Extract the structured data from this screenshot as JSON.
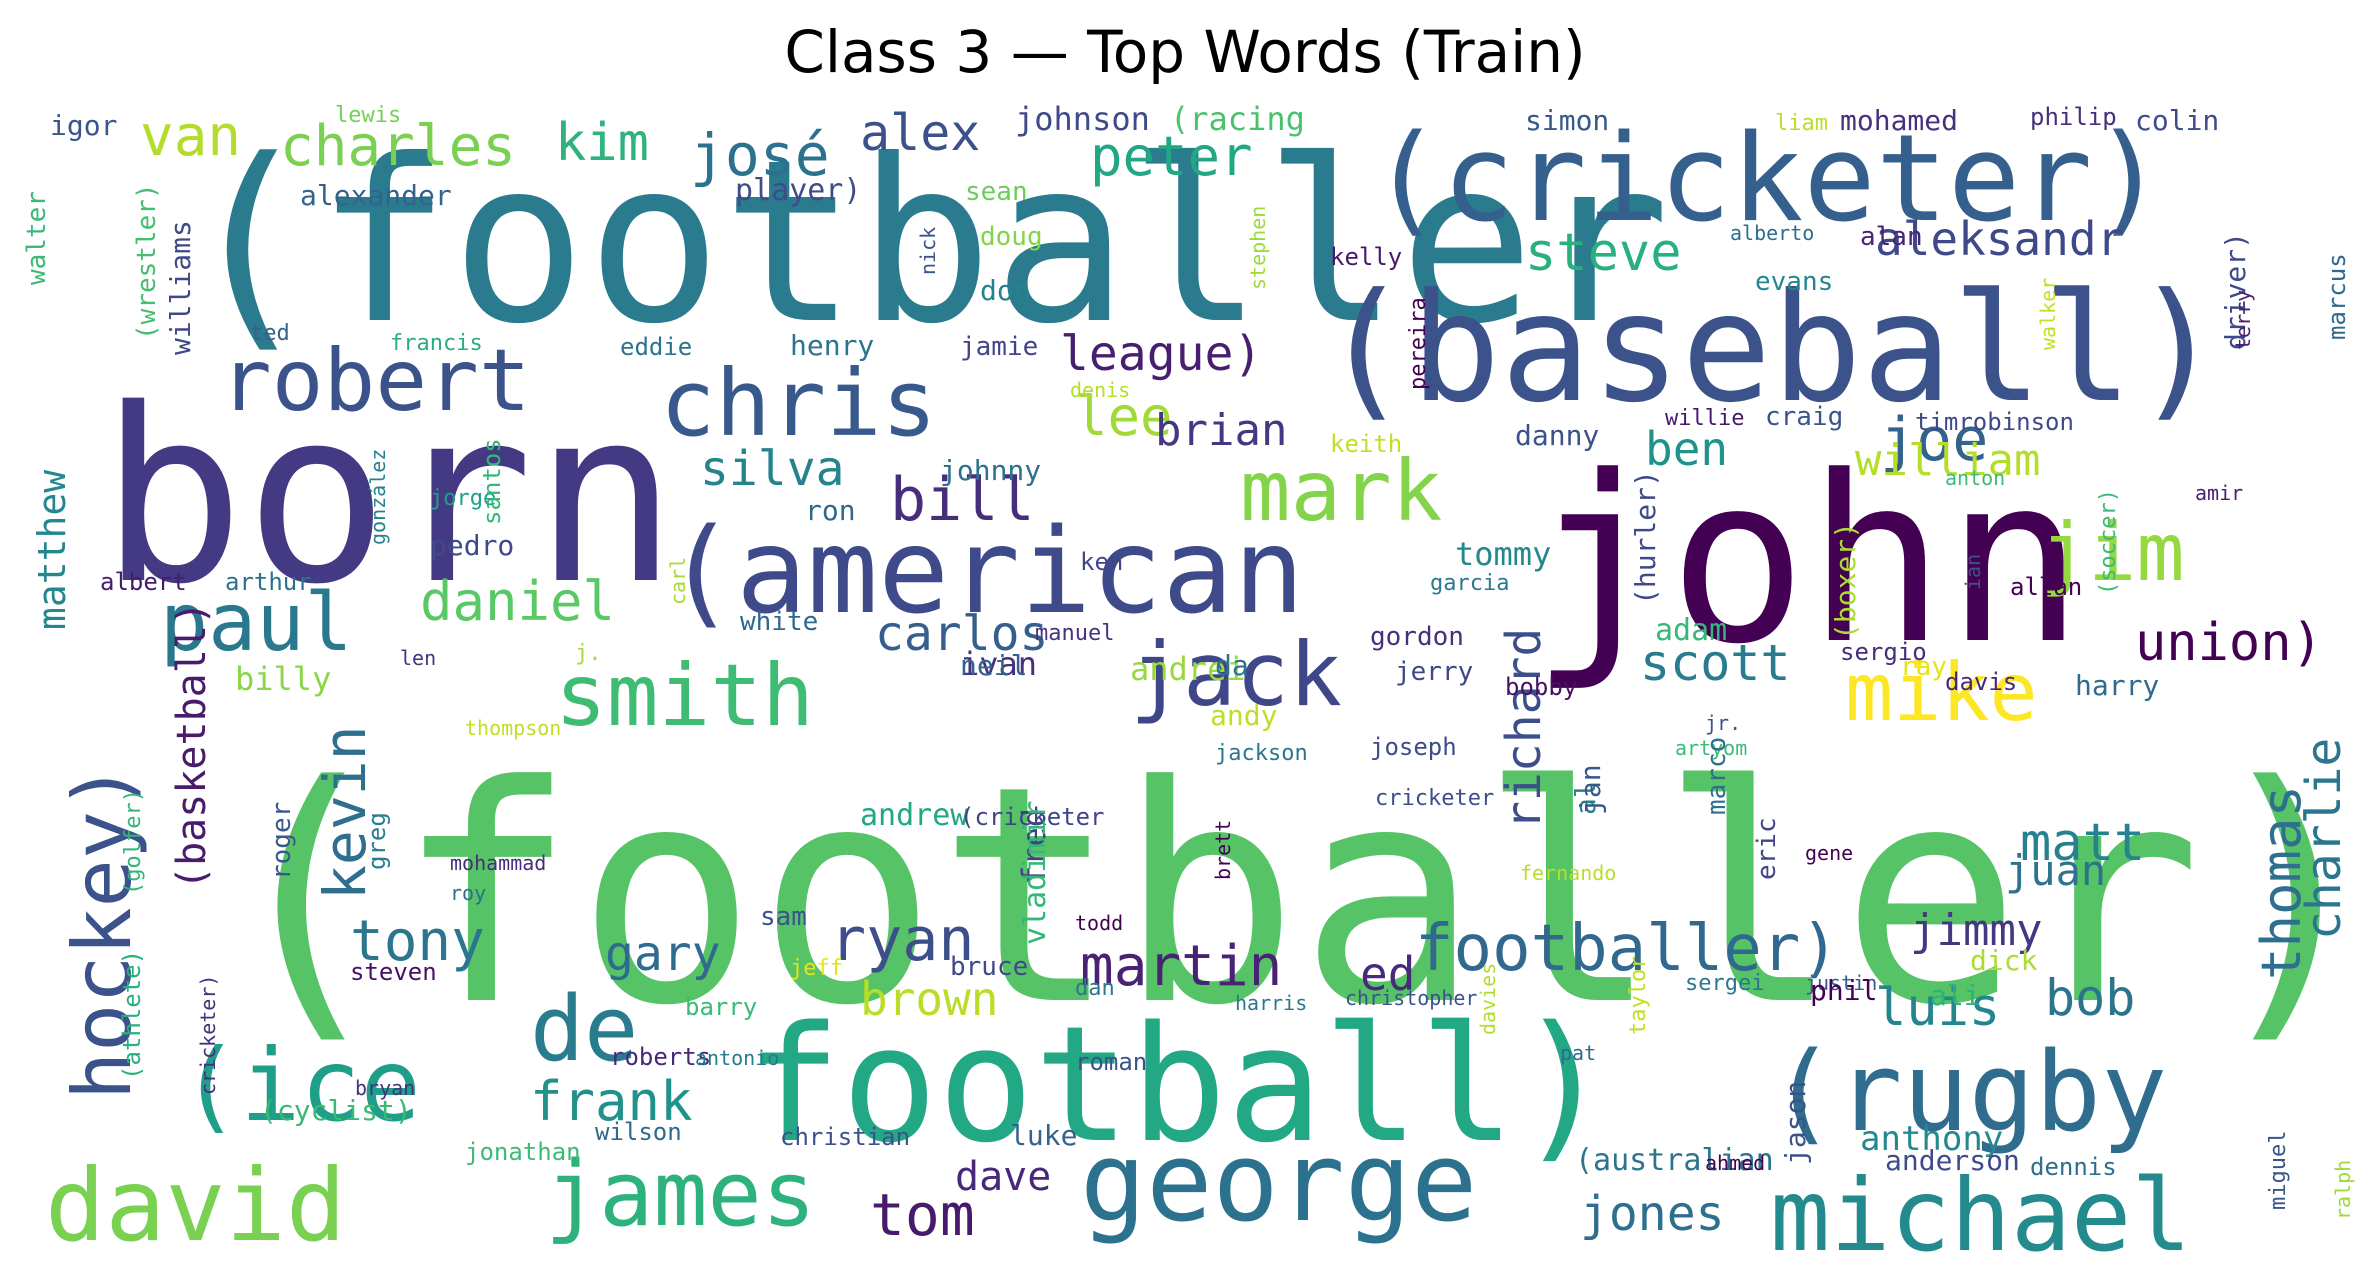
{
  "title": "Class 3 — Top Words (Train)",
  "words": [
    {
      "text": "(footballer)",
      "size": 300,
      "color": "#56c466"
    },
    {
      "text": "(footballer",
      "size": 225,
      "color": "#2a7b8e"
    },
    {
      "text": "born",
      "size": 240,
      "color": "#443a83"
    },
    {
      "text": "john",
      "size": 230,
      "color": "#440154"
    },
    {
      "text": "(cricketer)",
      "size": 120,
      "color": "#35608d"
    },
    {
      "text": "(baseball)",
      "size": 150,
      "color": "#3b528b"
    },
    {
      "text": "football)",
      "size": 160,
      "color": "#22a884"
    },
    {
      "text": "(american",
      "size": 118,
      "color": "#3e4a89"
    },
    {
      "text": "george",
      "size": 110,
      "color": "#2c728e"
    },
    {
      "text": "michael",
      "size": 100,
      "color": "#238a8d"
    },
    {
      "text": "(rugby",
      "size": 110,
      "color": "#2f6c8e"
    },
    {
      "text": "david",
      "size": 100,
      "color": "#7ad151"
    },
    {
      "text": "chris",
      "size": 92,
      "color": "#38598c"
    },
    {
      "text": "robert",
      "size": 86,
      "color": "#3b528b"
    },
    {
      "text": "(ice",
      "size": 100,
      "color": "#1f9e89"
    },
    {
      "text": "de",
      "size": 90,
      "color": "#287c8e"
    },
    {
      "text": "james",
      "size": 90,
      "color": "#2db27d"
    },
    {
      "text": "jack",
      "size": 88,
      "color": "#3f4788"
    },
    {
      "text": "smith",
      "size": 86,
      "color": "#3fbc73"
    },
    {
      "text": "mark",
      "size": 84,
      "color": "#84d44b"
    },
    {
      "text": "paul",
      "size": 80,
      "color": "#2a788e"
    },
    {
      "text": "mike",
      "size": 80,
      "color": "#fde725"
    },
    {
      "text": "jim",
      "size": 80,
      "color": "#95d840"
    },
    {
      "text": "hockey)",
      "size": 80,
      "color": "#3b528b"
    },
    {
      "text": "footballer)",
      "size": 64,
      "color": "#31688e"
    },
    {
      "text": "joe",
      "size": 60,
      "color": "#33638d"
    },
    {
      "text": "bill",
      "size": 60,
      "color": "#472d7b"
    },
    {
      "text": "kevin",
      "size": 58,
      "color": "#2e6e8e"
    },
    {
      "text": "ryan",
      "size": 60,
      "color": "#3d4e8a"
    },
    {
      "text": "martin",
      "size": 56,
      "color": "#482374"
    },
    {
      "text": "tony",
      "size": 56,
      "color": "#2b758e"
    },
    {
      "text": "tom",
      "size": 58,
      "color": "#481a6c"
    },
    {
      "text": "frank",
      "size": 54,
      "color": "#21918c"
    },
    {
      "text": "thomas",
      "size": 54,
      "color": "#2e6f8e"
    },
    {
      "text": "charlie",
      "size": 48,
      "color": "#2a768e"
    },
    {
      "text": "matt",
      "size": 52,
      "color": "#26828e"
    },
    {
      "text": "luis",
      "size": 52,
      "color": "#25858e"
    },
    {
      "text": "bob",
      "size": 50,
      "color": "#2b748e"
    },
    {
      "text": "ben",
      "size": 46,
      "color": "#20928c"
    },
    {
      "text": "william",
      "size": 44,
      "color": "#b5de2b"
    },
    {
      "text": "union)",
      "size": 52,
      "color": "#440154"
    },
    {
      "text": "scott",
      "size": 50,
      "color": "#297b8e"
    },
    {
      "text": "richard",
      "size": 48,
      "color": "#3c4f8a"
    },
    {
      "text": "steve",
      "size": 52,
      "color": "#2ab07f"
    },
    {
      "text": "aleksandr",
      "size": 46,
      "color": "#3e4989"
    },
    {
      "text": "peter",
      "size": 54,
      "color": "#22a785"
    },
    {
      "text": "josé",
      "size": 58,
      "color": "#2c728e"
    },
    {
      "text": "alex",
      "size": 50,
      "color": "#3b518b"
    },
    {
      "text": "van",
      "size": 56,
      "color": "#b2dd2d"
    },
    {
      "text": "charles",
      "size": 56,
      "color": "#7ad151"
    },
    {
      "text": "kim",
      "size": 52,
      "color": "#2eb37c"
    },
    {
      "text": "daniel",
      "size": 54,
      "color": "#5ac864"
    },
    {
      "text": "silva",
      "size": 48,
      "color": "#25838e"
    },
    {
      "text": "carlos",
      "size": 48,
      "color": "#355f8d"
    },
    {
      "text": "league)",
      "size": 48,
      "color": "#481f70"
    },
    {
      "text": "lee",
      "size": 54,
      "color": "#a0da39"
    },
    {
      "text": "brian",
      "size": 44,
      "color": "#453882"
    },
    {
      "text": "brown",
      "size": 46,
      "color": "#bade28"
    },
    {
      "text": "gary",
      "size": 48,
      "color": "#2f6b8e"
    },
    {
      "text": "jimmy",
      "size": 44,
      "color": "#453781"
    },
    {
      "text": "juan",
      "size": 42,
      "color": "#2c738e"
    },
    {
      "text": "ed",
      "size": 46,
      "color": "#472a7a"
    },
    {
      "text": "dave",
      "size": 40,
      "color": "#482878"
    },
    {
      "text": "jones",
      "size": 48,
      "color": "#2e6f8e"
    },
    {
      "text": "anthony",
      "size": 34,
      "color": "#23898e"
    },
    {
      "text": "matthew",
      "size": 38,
      "color": "#24868e"
    },
    {
      "text": "(basketball)",
      "size": 40,
      "color": "#481b6d"
    },
    {
      "text": "johnson",
      "size": 32,
      "color": "#3e4a89"
    },
    {
      "text": "(racing",
      "size": 32,
      "color": "#4ac16d"
    },
    {
      "text": "simon",
      "size": 28,
      "color": "#38588c"
    },
    {
      "text": "liam",
      "size": 22,
      "color": "#b8de29"
    },
    {
      "text": "mohamed",
      "size": 28,
      "color": "#46327e"
    },
    {
      "text": "philip",
      "size": 24,
      "color": "#46307e"
    },
    {
      "text": "colin",
      "size": 28,
      "color": "#3d4d8a"
    },
    {
      "text": "igor",
      "size": 28,
      "color": "#39568c"
    },
    {
      "text": "lewis",
      "size": 22,
      "color": "#73d056"
    },
    {
      "text": "walter",
      "size": 26,
      "color": "#3aba76"
    },
    {
      "text": "(wrestler)",
      "size": 26,
      "color": "#44bf70"
    },
    {
      "text": "williams",
      "size": 28,
      "color": "#3f4889"
    },
    {
      "text": "alexander",
      "size": 28,
      "color": "#33638d"
    },
    {
      "text": "player)",
      "size": 30,
      "color": "#3e4c8a"
    },
    {
      "text": "sean",
      "size": 26,
      "color": "#6ccd5a"
    },
    {
      "text": "doug",
      "size": 26,
      "color": "#84d44b"
    },
    {
      "text": "don",
      "size": 28,
      "color": "#26828e"
    },
    {
      "text": "nick",
      "size": 20,
      "color": "#39558c"
    },
    {
      "text": "stephen",
      "size": 20,
      "color": "#9dd93b"
    },
    {
      "text": "alberto",
      "size": 20,
      "color": "#2e6d8e"
    },
    {
      "text": "alan",
      "size": 26,
      "color": "#482475"
    },
    {
      "text": "kelly",
      "size": 24,
      "color": "#481769"
    },
    {
      "text": "evans",
      "size": 26,
      "color": "#24868e"
    },
    {
      "text": "driver)",
      "size": 28,
      "color": "#3e4989"
    },
    {
      "text": "marcus",
      "size": 24,
      "color": "#31688e"
    },
    {
      "text": "walker",
      "size": 20,
      "color": "#c2df23"
    },
    {
      "text": "terry",
      "size": 20,
      "color": "#481f70"
    },
    {
      "text": "pereira",
      "size": 22,
      "color": "#440154"
    },
    {
      "text": "ted",
      "size": 22,
      "color": "#33638d"
    },
    {
      "text": "francis",
      "size": 22,
      "color": "#29af7f"
    },
    {
      "text": "eddie",
      "size": 24,
      "color": "#2c738e"
    },
    {
      "text": "henry",
      "size": 28,
      "color": "#2c738e"
    },
    {
      "text": "jamie",
      "size": 26,
      "color": "#414487"
    },
    {
      "text": "denis",
      "size": 20,
      "color": "#b5de2b"
    },
    {
      "text": "keith",
      "size": 24,
      "color": "#c2df23"
    },
    {
      "text": "danny",
      "size": 28,
      "color": "#3b518b"
    },
    {
      "text": "craig",
      "size": 26,
      "color": "#39568c"
    },
    {
      "text": "willie",
      "size": 22,
      "color": "#48186a"
    },
    {
      "text": "timrobinson",
      "size": 24,
      "color": "#3f4889"
    },
    {
      "text": "anton",
      "size": 20,
      "color": "#3aba76"
    },
    {
      "text": "amir",
      "size": 20,
      "color": "#482173"
    },
    {
      "text": "jorge",
      "size": 22,
      "color": "#1fa088"
    },
    {
      "text": "gonzález",
      "size": 20,
      "color": "#26828e"
    },
    {
      "text": "santos",
      "size": 24,
      "color": "#35b779"
    },
    {
      "text": "pedro",
      "size": 28,
      "color": "#3e4a89"
    },
    {
      "text": "johnny",
      "size": 28,
      "color": "#2c728e"
    },
    {
      "text": "ron",
      "size": 28,
      "color": "#31688e"
    },
    {
      "text": "tommy",
      "size": 32,
      "color": "#24878e"
    },
    {
      "text": "garcia",
      "size": 22,
      "color": "#2a788e"
    },
    {
      "text": "(hurler)",
      "size": 28,
      "color": "#3e4a89"
    },
    {
      "text": "carl",
      "size": 20,
      "color": "#a8db34"
    },
    {
      "text": "ian",
      "size": 20,
      "color": "#3b528b"
    },
    {
      "text": "(soccer)",
      "size": 22,
      "color": "#3aba76"
    },
    {
      "text": "albert",
      "size": 24,
      "color": "#481b6d"
    },
    {
      "text": "arthur",
      "size": 24,
      "color": "#2c728e"
    },
    {
      "text": "ken",
      "size": 24,
      "color": "#3f4788"
    },
    {
      "text": "white",
      "size": 26,
      "color": "#31688e"
    },
    {
      "text": "(boxer)",
      "size": 28,
      "color": "#addc30"
    },
    {
      "text": "adam",
      "size": 30,
      "color": "#37b878"
    },
    {
      "text": "manuel",
      "size": 22,
      "color": "#46337f"
    },
    {
      "text": "gordon",
      "size": 26,
      "color": "#46307e"
    },
    {
      "text": "jerry",
      "size": 26,
      "color": "#3f4889"
    },
    {
      "text": "sergio",
      "size": 24,
      "color": "#472c7a"
    },
    {
      "text": "davis",
      "size": 24,
      "color": "#482878"
    },
    {
      "text": "harry",
      "size": 28,
      "color": "#306a8e"
    },
    {
      "text": "allan",
      "size": 24,
      "color": "#440154"
    },
    {
      "text": "ray",
      "size": 26,
      "color": "#e5e419"
    },
    {
      "text": "len",
      "size": 20,
      "color": "#46337f"
    },
    {
      "text": "j.",
      "size": 22,
      "color": "#a5db36"
    },
    {
      "text": "ivan",
      "size": 32,
      "color": "#472f7d"
    },
    {
      "text": "andrei",
      "size": 32,
      "color": "#99d83e"
    },
    {
      "text": "billy",
      "size": 32,
      "color": "#8bd646"
    },
    {
      "text": "bobby",
      "size": 24,
      "color": "#471164"
    },
    {
      "text": "neil",
      "size": 28,
      "color": "#33638d"
    },
    {
      "text": "da",
      "size": 28,
      "color": "#2c728e"
    },
    {
      "text": "andy",
      "size": 28,
      "color": "#bddf26"
    },
    {
      "text": "jackson",
      "size": 22,
      "color": "#2a768e"
    },
    {
      "text": "jr.",
      "size": 20,
      "color": "#3b528b"
    },
    {
      "text": "artyom",
      "size": 20,
      "color": "#3bbb75"
    },
    {
      "text": "thompson",
      "size": 20,
      "color": "#bddf26"
    },
    {
      "text": "joseph",
      "size": 24,
      "color": "#3e4c8a"
    },
    {
      "text": "cricketer",
      "size": 22,
      "color": "#3d4e8a"
    },
    {
      "text": "al",
      "size": 28,
      "color": "#277f8e"
    },
    {
      "text": "jan",
      "size": 28,
      "color": "#38588c"
    },
    {
      "text": "marco",
      "size": 26,
      "color": "#2e6f8e"
    },
    {
      "text": "eric",
      "size": 26,
      "color": "#414487"
    },
    {
      "text": "roger",
      "size": 26,
      "color": "#38588c"
    },
    {
      "text": "greg",
      "size": 24,
      "color": "#287d8e"
    },
    {
      "text": "fred",
      "size": 32,
      "color": "#424086"
    },
    {
      "text": "andrew",
      "size": 30,
      "color": "#22a785"
    },
    {
      "text": "(cricketer",
      "size": 24,
      "color": "#414487"
    },
    {
      "text": "brett",
      "size": 20,
      "color": "#440154"
    },
    {
      "text": "mohammad",
      "size": 20,
      "color": "#472d7b"
    },
    {
      "text": "roy",
      "size": 20,
      "color": "#2e6d8e"
    },
    {
      "text": "(golfer)",
      "size": 22,
      "color": "#34b679"
    },
    {
      "text": "fernando",
      "size": 20,
      "color": "#b8de29"
    },
    {
      "text": "gene",
      "size": 20,
      "color": "#440154"
    },
    {
      "text": "vladimir",
      "size": 30,
      "color": "#35b779"
    },
    {
      "text": "sam",
      "size": 26,
      "color": "#3b528b"
    },
    {
      "text": "todd",
      "size": 20,
      "color": "#440154"
    },
    {
      "text": "jeff",
      "size": 22,
      "color": "#e5e419"
    },
    {
      "text": "bruce",
      "size": 26,
      "color": "#3e4a89"
    },
    {
      "text": "dan",
      "size": 22,
      "color": "#2a788e"
    },
    {
      "text": "christopher",
      "size": 20,
      "color": "#3b528b"
    },
    {
      "text": "harris",
      "size": 20,
      "color": "#2a788e"
    },
    {
      "text": "taylor",
      "size": 22,
      "color": "#c2df23"
    },
    {
      "text": "sergei",
      "size": 22,
      "color": "#2a788e"
    },
    {
      "text": "justin",
      "size": 20,
      "color": "#38598c"
    },
    {
      "text": "phil",
      "size": 28,
      "color": "#440154"
    },
    {
      "text": "ali",
      "size": 28,
      "color": "#2db27d"
    },
    {
      "text": "dick",
      "size": 28,
      "color": "#addc30"
    },
    {
      "text": "(athlete)",
      "size": 24,
      "color": "#2ab07f"
    },
    {
      "text": "cricketer)",
      "size": 20,
      "color": "#46307e"
    },
    {
      "text": "steven",
      "size": 24,
      "color": "#471063"
    },
    {
      "text": "barry",
      "size": 24,
      "color": "#3aba76"
    },
    {
      "text": "roberts",
      "size": 24,
      "color": "#482878"
    },
    {
      "text": "antonio",
      "size": 20,
      "color": "#2a788e"
    },
    {
      "text": "roman",
      "size": 24,
      "color": "#3b528b"
    },
    {
      "text": "pat",
      "size": 20,
      "color": "#2f6b8e"
    },
    {
      "text": "jason",
      "size": 28,
      "color": "#3b518b"
    },
    {
      "text": "davies",
      "size": 20,
      "color": "#b2dd2d"
    },
    {
      "text": "bryan",
      "size": 20,
      "color": "#46337f"
    },
    {
      "text": "(cyclist)",
      "size": 28,
      "color": "#3aba76"
    },
    {
      "text": "wilson",
      "size": 24,
      "color": "#31688e"
    },
    {
      "text": "christian",
      "size": 24,
      "color": "#3b528b"
    },
    {
      "text": "luke",
      "size": 28,
      "color": "#33638d"
    },
    {
      "text": "jonathan",
      "size": 24,
      "color": "#3bbb75"
    },
    {
      "text": "(australian",
      "size": 30,
      "color": "#2b758e"
    },
    {
      "text": "ahmed",
      "size": 20,
      "color": "#440154"
    },
    {
      "text": "anderson",
      "size": 28,
      "color": "#3e4c8a"
    },
    {
      "text": "dennis",
      "size": 24,
      "color": "#2f6c8e"
    },
    {
      "text": "miguel",
      "size": 22,
      "color": "#39568c"
    },
    {
      "text": "ralph",
      "size": 20,
      "color": "#a0da39"
    }
  ]
}
